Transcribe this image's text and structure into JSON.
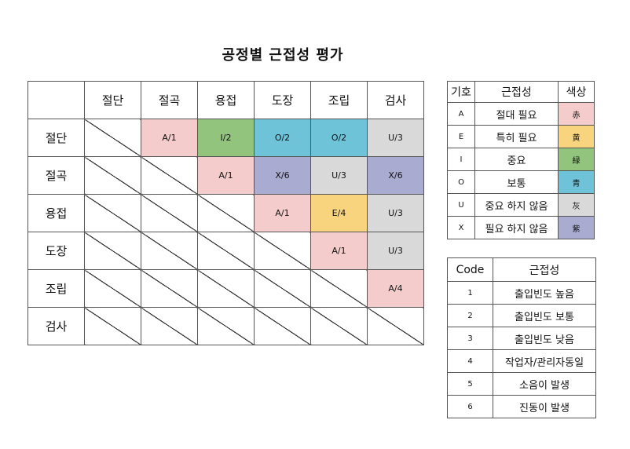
{
  "title": "공정별 근접성 평가",
  "matrix": {
    "columns": [
      "절단",
      "절곡",
      "용접",
      "도장",
      "조립",
      "검사"
    ],
    "rows": [
      {
        "label": "절단",
        "cells": [
          "",
          "A/1",
          "I/2",
          "O/2",
          "O/2",
          "U/3"
        ]
      },
      {
        "label": "절곡",
        "cells": [
          "",
          "",
          "A/1",
          "X/6",
          "U/3",
          "X/6"
        ]
      },
      {
        "label": "용접",
        "cells": [
          "",
          "",
          "",
          "A/1",
          "E/4",
          "U/3"
        ]
      },
      {
        "label": "도장",
        "cells": [
          "",
          "",
          "",
          "",
          "A/1",
          "U/3"
        ]
      },
      {
        "label": "조립",
        "cells": [
          "",
          "",
          "",
          "",
          "",
          "A/4"
        ]
      },
      {
        "label": "검사",
        "cells": [
          "",
          "",
          "",
          "",
          "",
          ""
        ]
      }
    ]
  },
  "legend": {
    "headers": [
      "기호",
      "근접성",
      "색상"
    ],
    "items": [
      {
        "symbol": "A",
        "desc": "절대 필요",
        "color_char": "赤",
        "color": "#f4cccc"
      },
      {
        "symbol": "E",
        "desc": "특히 필요",
        "color_char": "黄",
        "color": "#f9d47e"
      },
      {
        "symbol": "I",
        "desc": "중요",
        "color_char": "緑",
        "color": "#93c47d"
      },
      {
        "symbol": "O",
        "desc": "보통",
        "color_char": "青",
        "color": "#6fc3d9"
      },
      {
        "symbol": "U",
        "desc": "중요 하지 않음",
        "color_char": "灰",
        "color": "#d9d9d9"
      },
      {
        "symbol": "X",
        "desc": "필요 하지 않음",
        "color_char": "紫",
        "color": "#a9abd0"
      }
    ]
  },
  "codes": {
    "headers": [
      "Code",
      "근접성"
    ],
    "items": [
      {
        "code": "1",
        "desc": "출입빈도 높음"
      },
      {
        "code": "2",
        "desc": "출입빈도 보통"
      },
      {
        "code": "3",
        "desc": "출입빈도 낮음"
      },
      {
        "code": "4",
        "desc": "작업자/관리자동일"
      },
      {
        "code": "5",
        "desc": "소음이 발생"
      },
      {
        "code": "6",
        "desc": "진동이 발생"
      }
    ]
  }
}
